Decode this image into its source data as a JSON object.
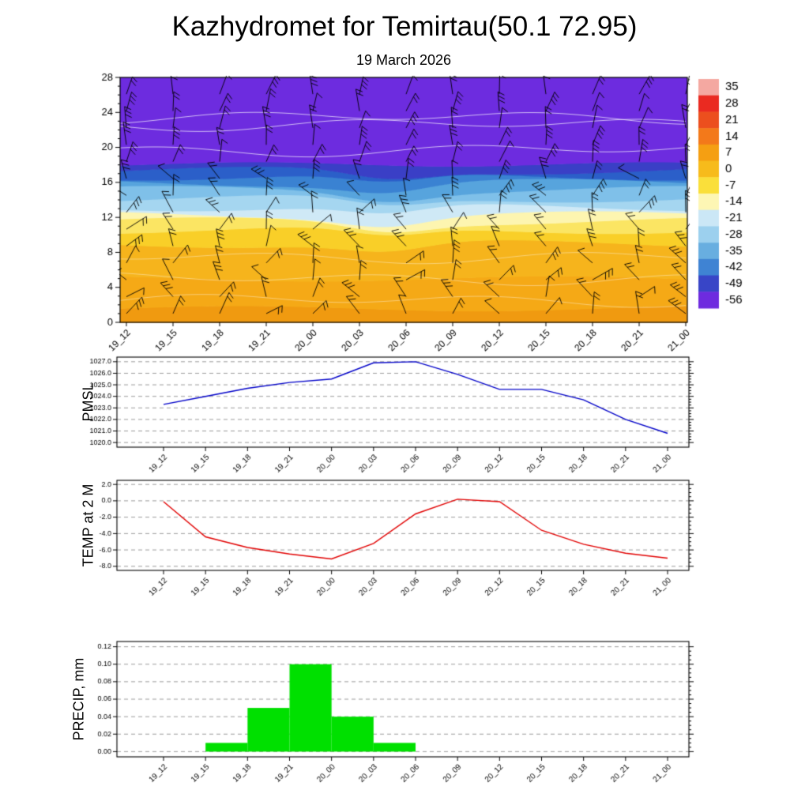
{
  "title": "Kazhydromet for Temirtau(50.1 72.95)",
  "subtitle": "19 March 2026",
  "time_labels": [
    "19_12",
    "19_15",
    "19_18",
    "19_21",
    "20_00",
    "20_03",
    "20_06",
    "20_09",
    "20_12",
    "20_15",
    "20_18",
    "20_21",
    "21_00"
  ],
  "chart_data": [
    {
      "type": "heatmap",
      "name": "temperature-height-cross-section",
      "title": "19 March 2026",
      "x_categories": [
        "19_12",
        "19_15",
        "19_18",
        "19_21",
        "20_00",
        "20_03",
        "20_06",
        "20_09",
        "20_12",
        "20_15",
        "20_18",
        "20_21",
        "21_00"
      ],
      "y_ticks": [
        0,
        4,
        8,
        12,
        16,
        20,
        24,
        28
      ],
      "ylim": [
        0,
        28
      ],
      "wind_barbs": {
        "columns": 13,
        "rows": 14
      },
      "colorbar": {
        "tick_labels": [
          "35",
          "28",
          "21",
          "14",
          "7",
          "0",
          "-7",
          "-14",
          "-21",
          "-28",
          "-35",
          "-42",
          "-49",
          "-56"
        ],
        "colors": [
          "#f4a8a1",
          "#ea2a21",
          "#ec4f1e",
          "#f3791a",
          "#f59f12",
          "#f7bb1b",
          "#fadf3a",
          "#fdf6b4",
          "#cbe7f6",
          "#9cd0ee",
          "#68aee0",
          "#3f83d3",
          "#3845c7",
          "#6e2bdf"
        ]
      },
      "bands": [
        {
          "to": 1.6,
          "color": "#f09a10"
        },
        {
          "to": 5.0,
          "color": "#f5a916"
        },
        {
          "to": 9.0,
          "color": "#f6b41c"
        },
        {
          "to": 10.6,
          "color": "#f9cf28"
        },
        {
          "to": 11.6,
          "color": "#fbe563"
        },
        {
          "to": 12.3,
          "color": "#fdf5b0"
        },
        {
          "to": 13.2,
          "color": "#cfe9f6"
        },
        {
          "to": 14.2,
          "color": "#a5d6f0"
        },
        {
          "to": 15.2,
          "color": "#7fc0e9"
        },
        {
          "to": 16.0,
          "color": "#57a4dd"
        },
        {
          "to": 16.7,
          "color": "#3a82d2"
        },
        {
          "to": 17.4,
          "color": "#2b5fc9"
        },
        {
          "to": 18.1,
          "color": "#3a3fc6"
        },
        {
          "to": 28,
          "color": "#6d2cdf"
        }
      ],
      "contour_heights": [
        2.5,
        5,
        7.5,
        19.7,
        22.6,
        23.4
      ]
    },
    {
      "type": "line",
      "name": "pmsl",
      "ylabel": "PMSL",
      "color": "#0000c8",
      "grid": "dashed",
      "legend": "none",
      "x_categories": [
        "19_12",
        "19_15",
        "19_18",
        "19_21",
        "20_00",
        "20_03",
        "20_06",
        "20_09",
        "20_12",
        "20_15",
        "20_18",
        "20_21",
        "21_00"
      ],
      "values": [
        1023.3,
        1024.0,
        1024.7,
        1025.2,
        1025.5,
        1026.9,
        1027.0,
        1025.9,
        1024.6,
        1024.6,
        1023.7,
        1022.0,
        1020.8
      ],
      "ylim": [
        1020,
        1027
      ],
      "y_tick_labels": [
        "1027.0",
        "1026.0",
        "1025.0",
        "1024.0",
        "1023.0",
        "1022.0",
        "1021.0",
        "1020.0"
      ]
    },
    {
      "type": "line",
      "name": "temp-2m",
      "ylabel": "TEMP at 2 M",
      "color": "#e10000",
      "grid": "dashed",
      "legend": "none",
      "x_categories": [
        "19_12",
        "19_15",
        "19_18",
        "19_21",
        "20_00",
        "20_03",
        "20_06",
        "20_09",
        "20_12",
        "20_15",
        "20_18",
        "20_21",
        "21_00"
      ],
      "values": [
        -0.1,
        -4.4,
        -5.7,
        -6.5,
        -7.1,
        -5.2,
        -1.6,
        0.2,
        -0.1,
        -3.6,
        -5.3,
        -6.4,
        -7.0
      ],
      "ylim": [
        -8,
        2
      ],
      "y_tick_labels": [
        "2.0",
        "0.0",
        "-2.0",
        "-4.0",
        "-6.0",
        "-8.0"
      ]
    },
    {
      "type": "bar",
      "name": "precip",
      "ylabel": "PRECIP, mm",
      "color": "#00e000",
      "grid": "dashed",
      "legend": "none",
      "x_categories": [
        "19_12",
        "19_15",
        "19_18",
        "19_21",
        "20_00",
        "20_03",
        "20_06",
        "20_09",
        "20_12",
        "20_15",
        "20_18",
        "20_21",
        "21_00"
      ],
      "interval_values": [
        0,
        0.01,
        0.05,
        0.1,
        0.04,
        0.01,
        0,
        0,
        0,
        0,
        0,
        0
      ],
      "ylim": [
        0,
        0.12
      ],
      "y_tick_labels": [
        "0.12",
        "0.10",
        "0.08",
        "0.06",
        "0.04",
        "0.02",
        "0.00"
      ]
    }
  ]
}
